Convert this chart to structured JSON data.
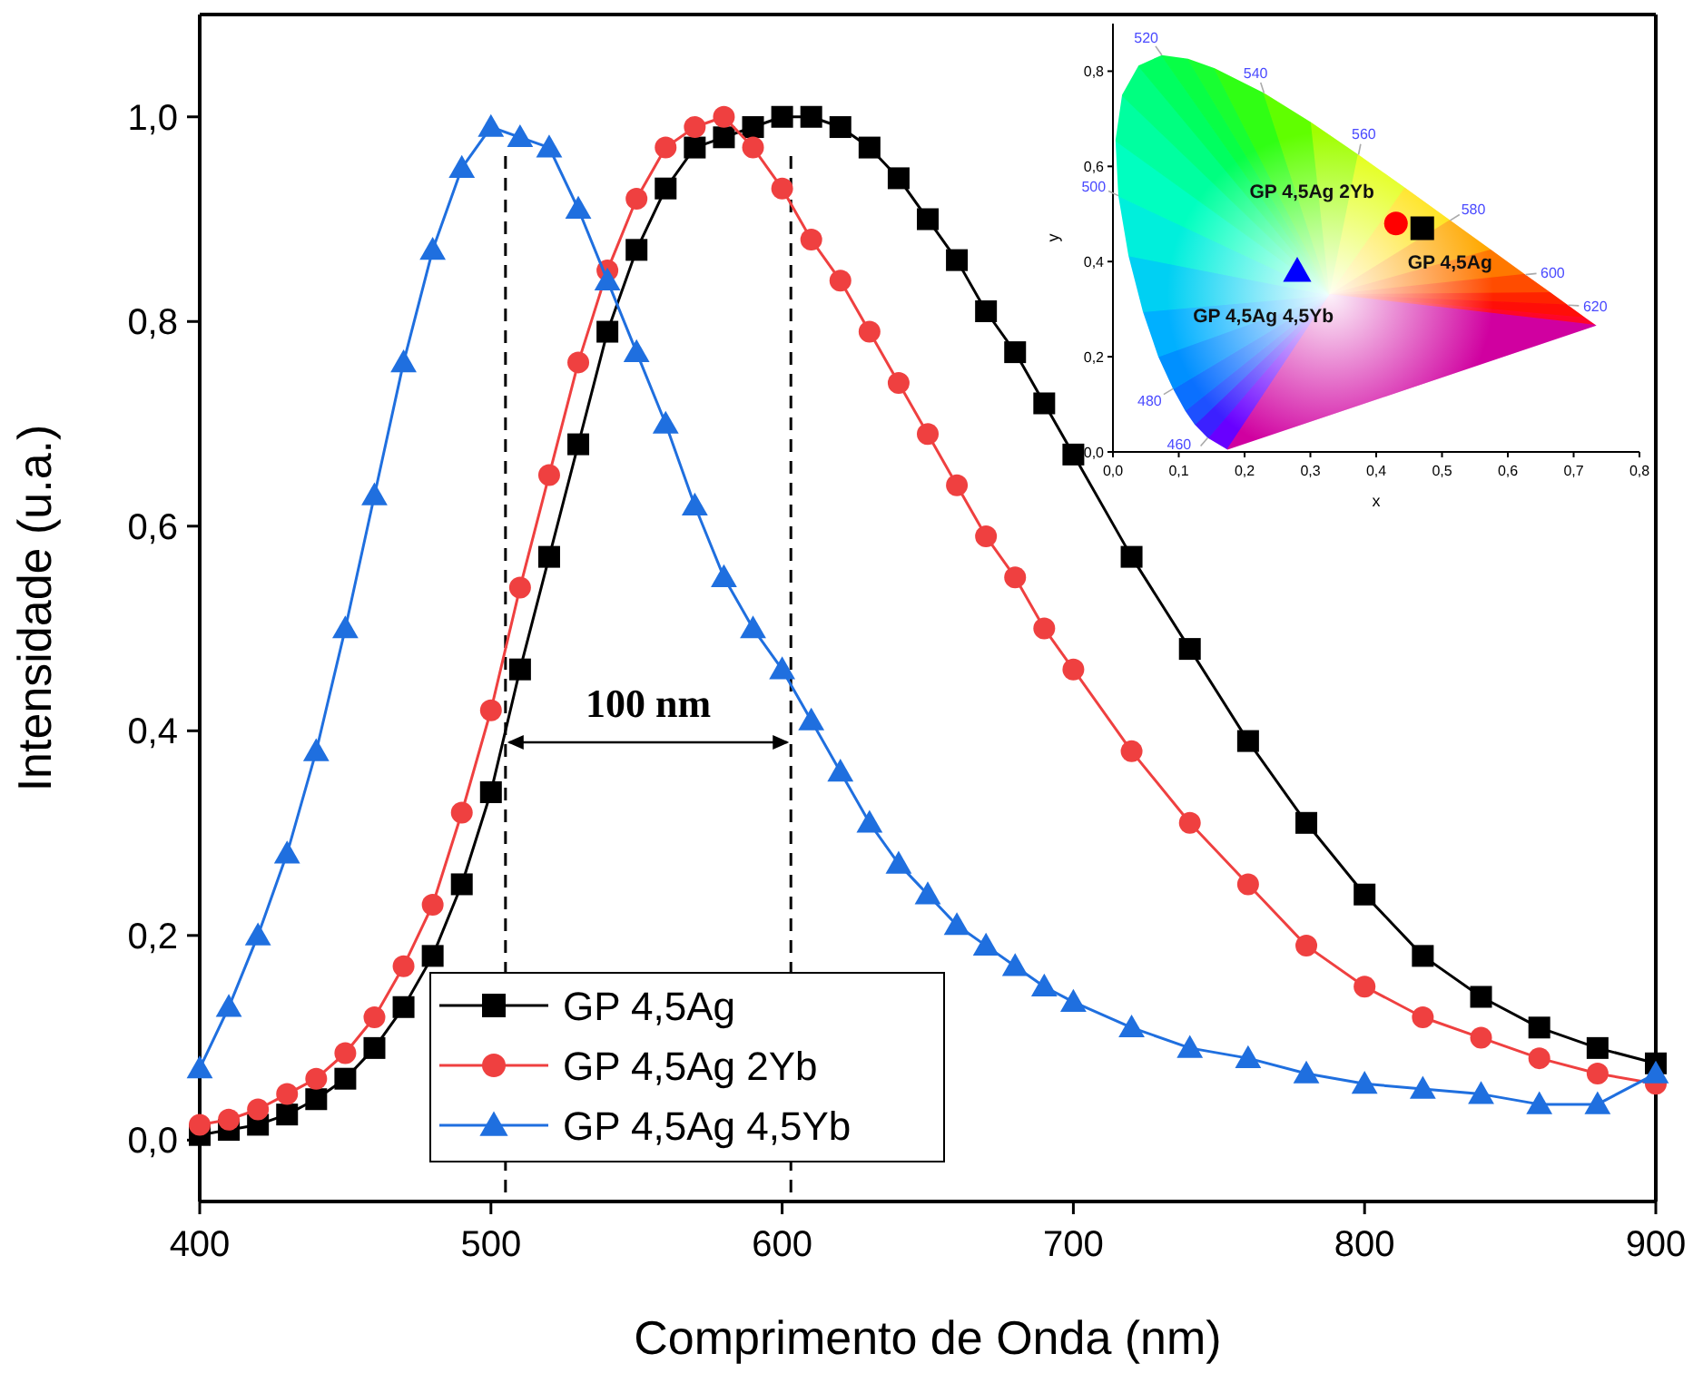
{
  "chart_data": [
    {
      "type": "line",
      "xlabel": "Comprimento de Onda (nm)",
      "ylabel": "Intensidade (u.a.)",
      "x": [
        400,
        410,
        420,
        430,
        440,
        450,
        460,
        470,
        480,
        490,
        500,
        510,
        520,
        530,
        540,
        550,
        560,
        570,
        580,
        590,
        600,
        610,
        620,
        630,
        640,
        650,
        660,
        670,
        680,
        690,
        700,
        720,
        740,
        760,
        780,
        800,
        820,
        840,
        860,
        880,
        900
      ],
      "series": [
        {
          "name": "GP 4,5Ag",
          "color": "#000000",
          "marker": "square",
          "values": [
            0.005,
            0.01,
            0.015,
            0.025,
            0.04,
            0.06,
            0.09,
            0.13,
            0.18,
            0.25,
            0.34,
            0.46,
            0.57,
            0.68,
            0.79,
            0.87,
            0.93,
            0.97,
            0.98,
            0.99,
            1.0,
            1.0,
            0.99,
            0.97,
            0.94,
            0.9,
            0.86,
            0.81,
            0.77,
            0.72,
            0.67,
            0.57,
            0.48,
            0.39,
            0.31,
            0.24,
            0.18,
            0.14,
            0.11,
            0.09,
            0.075
          ]
        },
        {
          "name": "GP 4,5Ag 2Yb",
          "color": "#ef4040",
          "marker": "circle",
          "values": [
            0.015,
            0.02,
            0.03,
            0.045,
            0.06,
            0.085,
            0.12,
            0.17,
            0.23,
            0.32,
            0.42,
            0.54,
            0.65,
            0.76,
            0.85,
            0.92,
            0.97,
            0.99,
            1.0,
            0.97,
            0.93,
            0.88,
            0.84,
            0.79,
            0.74,
            0.69,
            0.64,
            0.59,
            0.55,
            0.5,
            0.46,
            0.38,
            0.31,
            0.25,
            0.19,
            0.15,
            0.12,
            0.1,
            0.08,
            0.065,
            0.055
          ]
        },
        {
          "name": "GP 4,5Ag 4,5Yb",
          "color": "#1f6fdf",
          "marker": "triangle",
          "values": [
            0.07,
            0.13,
            0.2,
            0.28,
            0.38,
            0.5,
            0.63,
            0.76,
            0.87,
            0.95,
            0.99,
            0.98,
            0.97,
            0.91,
            0.84,
            0.77,
            0.7,
            0.62,
            0.55,
            0.5,
            0.46,
            0.41,
            0.36,
            0.31,
            0.27,
            0.24,
            0.21,
            0.19,
            0.17,
            0.15,
            0.135,
            0.11,
            0.09,
            0.08,
            0.065,
            0.055,
            0.05,
            0.045,
            0.035,
            0.035,
            0.065
          ]
        }
      ],
      "xlim": [
        400,
        900
      ],
      "ylim": [
        -0.06,
        1.1
      ],
      "xticks": [
        400,
        500,
        600,
        700,
        800,
        900
      ],
      "yticks": [
        {
          "value": 0,
          "label": "0,0"
        },
        {
          "value": 0.2,
          "label": "0,2"
        },
        {
          "value": 0.4,
          "label": "0,4"
        },
        {
          "value": 0.6,
          "label": "0,6"
        },
        {
          "value": 0.8,
          "label": "0,8"
        },
        {
          "value": 1.0,
          "label": "1,0"
        }
      ],
      "legend": "bottom left",
      "ref_lines": [
        {
          "axis": "x",
          "value": 505,
          "line_style": "dashed",
          "color": "#000000"
        },
        {
          "axis": "x",
          "value": 603,
          "line_style": "dashed",
          "color": "#000000"
        }
      ],
      "annotations": [
        "100 nm"
      ]
    },
    {
      "type": "scatter",
      "xlabel": "x",
      "ylabel": "y",
      "series": [
        {
          "name": "GP 4,5Ag",
          "color": "#000000",
          "marker": "square",
          "x": [
            0.47
          ],
          "values": [
            0.47
          ]
        },
        {
          "name": "GP 4,5Ag 2Yb",
          "color": "#ff0000",
          "marker": "circle",
          "x": [
            0.43
          ],
          "values": [
            0.48
          ]
        },
        {
          "name": "GP 4,5Ag 4,5Yb",
          "color": "#0000ff",
          "marker": "triangle",
          "x": [
            0.28
          ],
          "values": [
            0.38
          ]
        }
      ],
      "xlim": [
        0,
        0.8
      ],
      "ylim": [
        0,
        0.9
      ],
      "xticks": [
        {
          "value": 0,
          "label": "0,0"
        },
        {
          "value": 0.1,
          "label": "0,1"
        },
        {
          "value": 0.2,
          "label": "0,2"
        },
        {
          "value": 0.3,
          "label": "0,3"
        },
        {
          "value": 0.4,
          "label": "0,4"
        },
        {
          "value": 0.5,
          "label": "0,5"
        },
        {
          "value": 0.6,
          "label": "0,6"
        },
        {
          "value": 0.7,
          "label": "0,7"
        },
        {
          "value": 0.8,
          "label": "0,8"
        }
      ],
      "yticks": [
        {
          "value": 0,
          "label": "0,0"
        },
        {
          "value": 0.2,
          "label": "0,2"
        },
        {
          "value": 0.4,
          "label": "0,4"
        },
        {
          "value": 0.6,
          "label": "0,6"
        },
        {
          "value": 0.8,
          "label": "0,8"
        }
      ],
      "annotations": [
        "460",
        "480",
        "500",
        "520",
        "540",
        "560",
        "580",
        "600",
        "620"
      ]
    }
  ]
}
